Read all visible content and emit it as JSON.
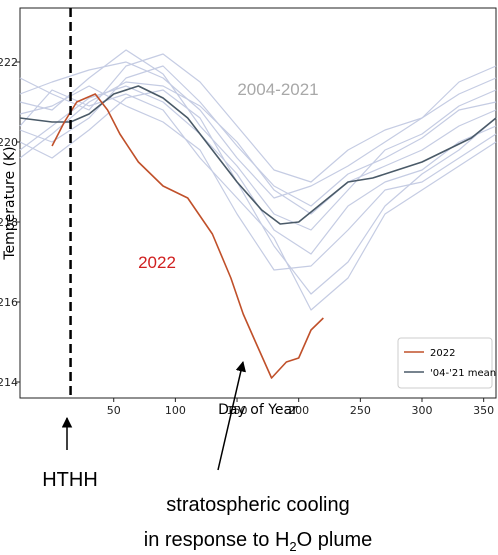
{
  "chart_data": {
    "type": "line",
    "xlabel": "Day of Year",
    "ylabel": "Temperature (K)",
    "xlim": [
      -26,
      360
    ],
    "ylim": [
      213.6,
      223.35
    ],
    "xticks": [
      50,
      100,
      150,
      200,
      250,
      300,
      350
    ],
    "yticks": [
      214,
      216,
      218,
      220,
      222
    ],
    "legend": "lower right",
    "event_day": 15,
    "year_lines_label": "2004-2021",
    "year_lines_color": "#c5cce3",
    "year_x": [
      -26,
      0,
      30,
      60,
      90,
      120,
      150,
      180,
      210,
      240,
      270,
      300,
      330,
      360
    ],
    "year_lines": [
      [
        221.2,
        221.5,
        221.8,
        222.0,
        221.6,
        220.8,
        219.6,
        218.6,
        218.9,
        219.4,
        220.0,
        220.6,
        221.2,
        221.6
      ],
      [
        220.3,
        220.0,
        220.6,
        221.6,
        221.9,
        221.0,
        219.9,
        218.9,
        218.4,
        219.2,
        219.6,
        220.1,
        220.8,
        221.0
      ],
      [
        219.8,
        220.4,
        221.1,
        221.4,
        221.0,
        220.2,
        219.2,
        217.8,
        217.2,
        218.4,
        219.0,
        219.3,
        220.0,
        220.4
      ],
      [
        221.6,
        221.2,
        220.8,
        221.9,
        222.2,
        221.5,
        220.4,
        219.3,
        219.0,
        219.8,
        220.3,
        220.6,
        221.5,
        221.9
      ],
      [
        220.7,
        220.9,
        221.4,
        220.9,
        220.5,
        219.8,
        218.2,
        216.8,
        216.9,
        217.8,
        218.8,
        219.0,
        219.6,
        220.2
      ],
      [
        220.0,
        219.6,
        220.3,
        221.1,
        221.3,
        220.6,
        219.0,
        217.4,
        216.2,
        217.0,
        218.4,
        219.2,
        219.8,
        220.6
      ],
      [
        221.0,
        220.8,
        221.6,
        222.3,
        221.7,
        220.4,
        219.4,
        218.2,
        217.8,
        218.8,
        219.8,
        220.2,
        220.9,
        221.3
      ],
      [
        220.4,
        221.3,
        220.9,
        221.2,
        220.8,
        219.6,
        218.6,
        217.6,
        215.8,
        216.6,
        218.2,
        218.8,
        219.4,
        220.0
      ],
      [
        219.6,
        220.2,
        221.0,
        221.5,
        221.4,
        220.9,
        220.0,
        218.8,
        218.2,
        219.0,
        219.4,
        219.8,
        220.4,
        220.8
      ]
    ],
    "series": [
      {
        "name": "2022",
        "color": "#c0502a",
        "label": "2022",
        "label_color": "#d02020",
        "x": [
          0,
          10,
          20,
          35,
          45,
          55,
          70,
          90,
          110,
          130,
          145,
          155,
          165,
          178,
          190,
          200,
          210,
          220
        ],
        "values": [
          219.9,
          220.5,
          221.0,
          221.2,
          220.8,
          220.2,
          219.5,
          218.9,
          218.6,
          217.7,
          216.6,
          215.7,
          215.0,
          214.1,
          214.5,
          214.6,
          215.3,
          215.6
        ]
      },
      {
        "name": "'04-'21 mean",
        "color": "#4a5a68",
        "x": [
          -26,
          0,
          15,
          30,
          50,
          70,
          90,
          110,
          130,
          150,
          170,
          185,
          200,
          220,
          240,
          260,
          280,
          300,
          320,
          340,
          360
        ],
        "values": [
          220.6,
          220.5,
          220.5,
          220.7,
          221.2,
          221.4,
          221.1,
          220.6,
          219.8,
          219.0,
          218.3,
          217.95,
          218.0,
          218.5,
          219.0,
          219.1,
          219.3,
          219.5,
          219.8,
          220.1,
          220.6
        ]
      }
    ]
  },
  "annotations": {
    "event": "HTHH",
    "caption_line1": "stratospheric cooling",
    "caption_line2_pre": "in response to H",
    "caption_sub": "2",
    "caption_line2_post": "O plume"
  }
}
